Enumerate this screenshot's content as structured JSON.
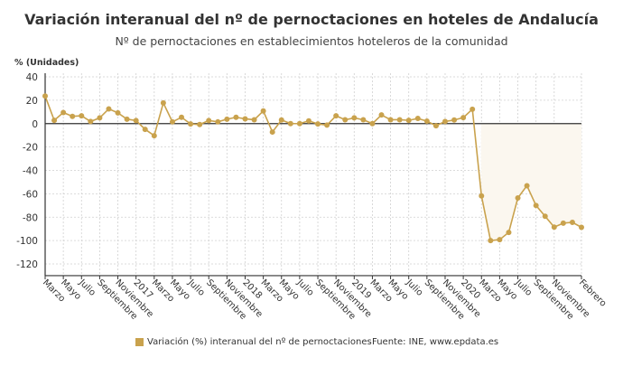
{
  "header": {
    "title": "Variación interanual del nº de pernoctaciones en hoteles de Andalucía",
    "subtitle": "Nº de pernoctaciones en establecimientos hoteleros de la comunidad"
  },
  "footer": {
    "source": "Fuente: INE, www.epdata.es"
  },
  "colors": {
    "series": "#c9a24d",
    "shade": "#fbf7ef",
    "zero_line": "#333333",
    "grid": "#d0d0d0"
  },
  "chart_data": {
    "type": "line",
    "title": "Variación interanual del nº de pernoctaciones en hoteles de Andalucía",
    "subtitle": "Nº de pernoctaciones en establecimientos hoteleros de la comunidad",
    "ylabel": "% (Unidades)",
    "xlabel": "",
    "ylim": [
      -130,
      40
    ],
    "yticks": [
      40,
      20,
      0,
      -20,
      -40,
      -60,
      -80,
      -100,
      -120
    ],
    "grid": true,
    "legend": "bottom",
    "x_start": "2016-03",
    "x_end": "2021-02",
    "xtick_labels": [
      {
        "index": 0,
        "label": "Marzo"
      },
      {
        "index": 2,
        "label": "Mayo"
      },
      {
        "index": 4,
        "label": "Julio"
      },
      {
        "index": 6,
        "label": "Septiembre"
      },
      {
        "index": 8,
        "label": "Noviembre"
      },
      {
        "index": 10,
        "label": "2017"
      },
      {
        "index": 12,
        "label": "Marzo"
      },
      {
        "index": 14,
        "label": "Mayo"
      },
      {
        "index": 16,
        "label": "Julio"
      },
      {
        "index": 18,
        "label": "Septiembre"
      },
      {
        "index": 20,
        "label": "Noviembre"
      },
      {
        "index": 22,
        "label": "2018"
      },
      {
        "index": 24,
        "label": "Marzo"
      },
      {
        "index": 26,
        "label": "Mayo"
      },
      {
        "index": 28,
        "label": "Julio"
      },
      {
        "index": 30,
        "label": "Septiembre"
      },
      {
        "index": 32,
        "label": "Noviembre"
      },
      {
        "index": 34,
        "label": "2019"
      },
      {
        "index": 36,
        "label": "Marzo"
      },
      {
        "index": 38,
        "label": "Mayo"
      },
      {
        "index": 40,
        "label": "Julio"
      },
      {
        "index": 42,
        "label": "Septiembre"
      },
      {
        "index": 44,
        "label": "Noviembre"
      },
      {
        "index": 46,
        "label": "2020"
      },
      {
        "index": 48,
        "label": "Marzo"
      },
      {
        "index": 50,
        "label": "Mayo"
      },
      {
        "index": 52,
        "label": "Julio"
      },
      {
        "index": 54,
        "label": "Septiembre"
      },
      {
        "index": 56,
        "label": "Noviembre"
      },
      {
        "index": 59,
        "label": "Febrero"
      }
    ],
    "series": [
      {
        "name": "Variación (%) interanual del nº de pernoctaciones",
        "values": [
          23.6,
          2.8,
          9.5,
          6.2,
          6.7,
          1.8,
          4.9,
          12.6,
          9.2,
          3.8,
          2.6,
          -4.9,
          -10.3,
          17.7,
          1.5,
          5.4,
          -0.3,
          -0.8,
          2.6,
          1.5,
          3.8,
          5.4,
          4.1,
          3.3,
          10.8,
          -7.2,
          3.1,
          0,
          0,
          2.3,
          -0.3,
          -1.3,
          6.7,
          3.3,
          4.9,
          3.3,
          0,
          7.4,
          3.3,
          3.3,
          2.8,
          4.4,
          2.1,
          -1.8,
          1.8,
          3.1,
          5.1,
          12.3,
          -61.8,
          -100,
          -99.2,
          -93,
          -63.6,
          -53.1,
          -70,
          -79.2,
          -88.5,
          -85.1,
          -84.4,
          -88.7
        ]
      }
    ],
    "shaded_from_index": 48
  }
}
